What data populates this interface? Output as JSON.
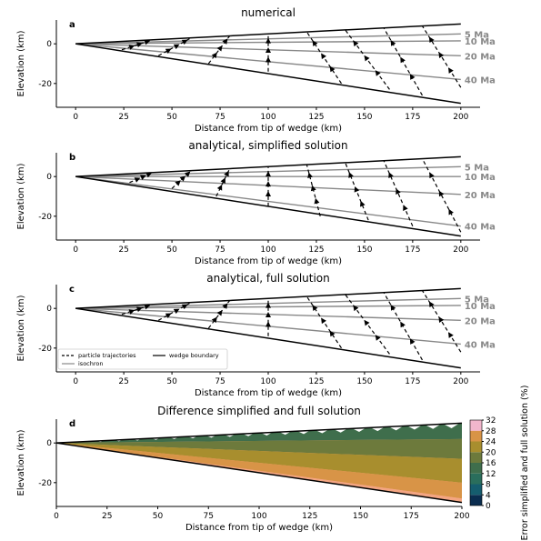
{
  "chart_data": [
    {
      "type": "line",
      "panel": "a",
      "title": "numerical",
      "xlabel": "Distance from tip of wedge (km)",
      "ylabel": "Elevation (km)",
      "xlim": [
        -10,
        210
      ],
      "ylim": [
        -32,
        12
      ],
      "xticks": [
        0,
        25,
        50,
        75,
        100,
        125,
        150,
        175,
        200
      ],
      "yticks": [
        0,
        -20
      ],
      "wedge_boundary": {
        "top": [
          [
            0,
            0
          ],
          [
            200,
            10
          ]
        ],
        "bottom": [
          [
            0,
            0
          ],
          [
            200,
            -30
          ]
        ]
      },
      "isochrons": [
        {
          "name": "5 Ma",
          "points": [
            [
              0,
              0
            ],
            [
              200,
              5
            ]
          ]
        },
        {
          "name": "10 Ma",
          "points": [
            [
              0,
              0
            ],
            [
              200,
              1.5
            ]
          ]
        },
        {
          "name": "20 Ma",
          "points": [
            [
              0,
              0
            ],
            [
              200,
              -6
            ]
          ]
        },
        {
          "name": "40 Ma",
          "points": [
            [
              0,
              0
            ],
            [
              200,
              -18
            ]
          ]
        }
      ],
      "trajectories": [
        {
          "top": [
            40,
            2
          ],
          "bottom": [
            24,
            -3
          ]
        },
        {
          "top": [
            60,
            3
          ],
          "bottom": [
            43,
            -6
          ]
        },
        {
          "top": [
            80,
            4
          ],
          "bottom": [
            69,
            -10
          ]
        },
        {
          "top": [
            100,
            5
          ],
          "bottom": [
            100,
            -14
          ]
        },
        {
          "top": [
            120,
            6
          ],
          "bottom": [
            138,
            -20
          ]
        },
        {
          "top": [
            140,
            7
          ],
          "bottom": [
            163,
            -23
          ]
        },
        {
          "top": [
            160,
            8
          ],
          "bottom": [
            180,
            -26
          ]
        },
        {
          "top": [
            180,
            9
          ],
          "bottom": [
            200,
            -22
          ]
        }
      ],
      "isochron_labels": [
        "5 Ma",
        "10 Ma",
        "20 Ma",
        "40 Ma"
      ]
    },
    {
      "type": "line",
      "panel": "b",
      "title": "analytical, simplified solution",
      "xlabel": "Distance from tip of wedge (km)",
      "ylabel": "Elevation (km)",
      "xlim": [
        -10,
        210
      ],
      "ylim": [
        -32,
        12
      ],
      "xticks": [
        0,
        25,
        50,
        75,
        100,
        125,
        150,
        175,
        200
      ],
      "yticks": [
        0,
        -20
      ],
      "wedge_boundary": {
        "top": [
          [
            0,
            0
          ],
          [
            200,
            10
          ]
        ],
        "bottom": [
          [
            0,
            0
          ],
          [
            200,
            -30
          ]
        ]
      },
      "isochrons": [
        {
          "name": "5 Ma",
          "points": [
            [
              0,
              0
            ],
            [
              200,
              5
            ]
          ]
        },
        {
          "name": "10 Ma",
          "points": [
            [
              0,
              0
            ],
            [
              200,
              0
            ]
          ]
        },
        {
          "name": "20 Ma",
          "points": [
            [
              0,
              0
            ],
            [
              200,
              -9
            ]
          ]
        },
        {
          "name": "40 Ma",
          "points": [
            [
              0,
              0
            ],
            [
              200,
              -25
            ]
          ]
        }
      ],
      "trajectories": [
        {
          "top": [
            40,
            2
          ],
          "bottom": [
            28,
            -3
          ]
        },
        {
          "top": [
            60,
            3
          ],
          "bottom": [
            50,
            -6
          ]
        },
        {
          "top": [
            80,
            4
          ],
          "bottom": [
            73,
            -10
          ]
        },
        {
          "top": [
            100,
            5
          ],
          "bottom": [
            100,
            -15
          ]
        },
        {
          "top": [
            120,
            6
          ],
          "bottom": [
            127,
            -20
          ]
        },
        {
          "top": [
            140,
            7
          ],
          "bottom": [
            152,
            -22
          ]
        },
        {
          "top": [
            160,
            8
          ],
          "bottom": [
            175,
            -25
          ]
        },
        {
          "top": [
            180,
            9
          ],
          "bottom": [
            200,
            -28
          ]
        }
      ],
      "isochron_labels": [
        "5 Ma",
        "10 Ma",
        "20 Ma",
        "40 Ma"
      ]
    },
    {
      "type": "line",
      "panel": "c",
      "title": "analytical, full solution",
      "xlabel": "Distance from tip of wedge (km)",
      "ylabel": "Elevation (km)",
      "xlim": [
        -10,
        210
      ],
      "ylim": [
        -32,
        12
      ],
      "xticks": [
        0,
        25,
        50,
        75,
        100,
        125,
        150,
        175,
        200
      ],
      "yticks": [
        0,
        -20
      ],
      "wedge_boundary": {
        "top": [
          [
            0,
            0
          ],
          [
            200,
            10
          ]
        ],
        "bottom": [
          [
            0,
            0
          ],
          [
            200,
            -30
          ]
        ]
      },
      "isochrons": [
        {
          "name": "5 Ma",
          "points": [
            [
              0,
              0
            ],
            [
              200,
              5
            ]
          ]
        },
        {
          "name": "10 Ma",
          "points": [
            [
              0,
              0
            ],
            [
              200,
              1.5
            ]
          ]
        },
        {
          "name": "20 Ma",
          "points": [
            [
              0,
              0
            ],
            [
              200,
              -6
            ]
          ]
        },
        {
          "name": "40 Ma",
          "points": [
            [
              0,
              0
            ],
            [
              200,
              -18
            ]
          ]
        }
      ],
      "trajectories": [
        {
          "top": [
            40,
            2
          ],
          "bottom": [
            24,
            -3
          ]
        },
        {
          "top": [
            60,
            3
          ],
          "bottom": [
            43,
            -6
          ]
        },
        {
          "top": [
            80,
            4
          ],
          "bottom": [
            69,
            -10
          ]
        },
        {
          "top": [
            100,
            5
          ],
          "bottom": [
            100,
            -14
          ]
        },
        {
          "top": [
            120,
            6
          ],
          "bottom": [
            138,
            -20
          ]
        },
        {
          "top": [
            140,
            7
          ],
          "bottom": [
            163,
            -23
          ]
        },
        {
          "top": [
            160,
            8
          ],
          "bottom": [
            180,
            -26
          ]
        },
        {
          "top": [
            180,
            9
          ],
          "bottom": [
            200,
            -22
          ]
        }
      ],
      "isochron_labels": [
        "5 Ma",
        "10 Ma",
        "20 Ma",
        "40 Ma"
      ],
      "legend": {
        "placement": "lower-left",
        "entries": [
          "particle trajectories",
          "wedge boundary",
          "isochron"
        ]
      }
    },
    {
      "type": "heatmap",
      "panel": "d",
      "title": "Difference simplified and full solution",
      "xlabel": "Distance from tip of wedge (km)",
      "ylabel": "Elevation (km)",
      "xlim": [
        0,
        200
      ],
      "ylim": [
        -32,
        12
      ],
      "xticks": [
        0,
        25,
        50,
        75,
        100,
        125,
        150,
        175,
        200
      ],
      "yticks": [
        0,
        -20
      ],
      "colorbar": {
        "label": "Error simplified and full solution (%)",
        "ticks": [
          0,
          4,
          8,
          12,
          16,
          20,
          24,
          28,
          32
        ],
        "levels": [
          0,
          4,
          8,
          12,
          16,
          20,
          24,
          28,
          32
        ],
        "colors": [
          "#0a2d4f",
          "#155d6e",
          "#2a6e5c",
          "#3f6e4c",
          "#6d7a3c",
          "#a88e2e",
          "#d89447",
          "#f3a582",
          "#f2b6cc"
        ]
      },
      "bands": [
        {
          "level": 12,
          "y_at_200": [
            2,
            10
          ]
        },
        {
          "level": 16,
          "y_at_200": [
            -8,
            2
          ]
        },
        {
          "level": 20,
          "y_at_200": [
            -20,
            -8
          ]
        },
        {
          "level": 24,
          "y_at_200": [
            -28,
            -20
          ]
        },
        {
          "level": 28,
          "y_at_200": [
            -30,
            -28
          ]
        }
      ]
    }
  ]
}
